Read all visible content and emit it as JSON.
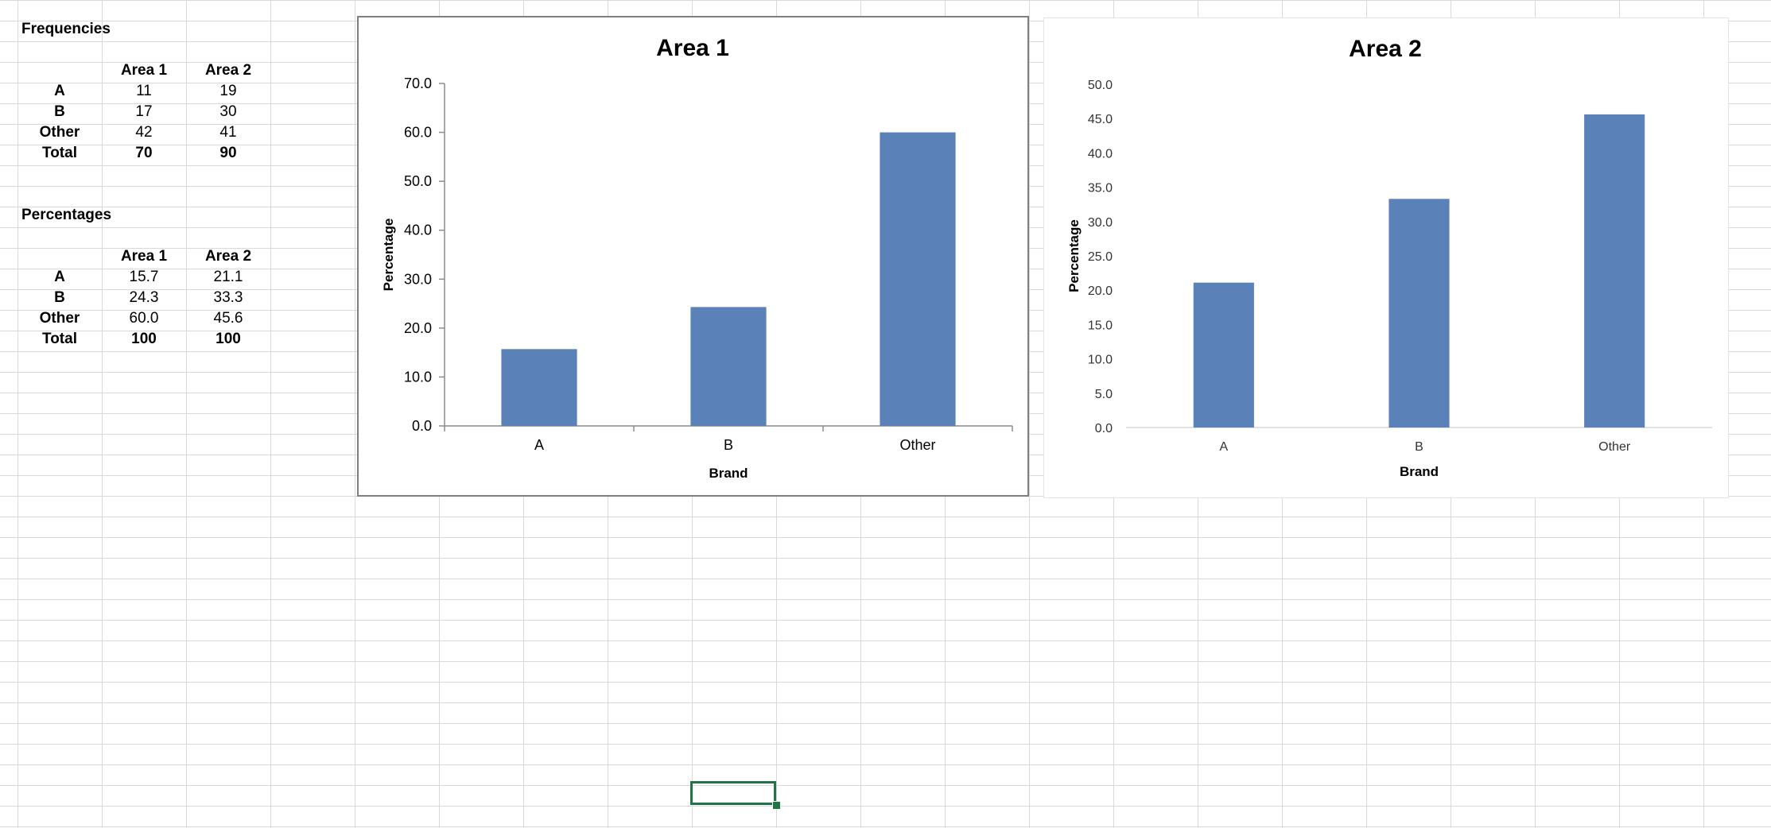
{
  "sheet": {
    "frequencies": {
      "title": "Frequencies",
      "headers": [
        "Area 1",
        "Area 2"
      ],
      "rows": [
        {
          "label": "A",
          "area1": "11",
          "area2": "19"
        },
        {
          "label": "B",
          "area1": "17",
          "area2": "30"
        },
        {
          "label": "Other",
          "area1": "42",
          "area2": "41"
        },
        {
          "label": "Total",
          "area1": "70",
          "area2": "90"
        }
      ]
    },
    "percentages": {
      "title": "Percentages",
      "headers": [
        "Area 1",
        "Area 2"
      ],
      "rows": [
        {
          "label": "A",
          "area1": "15.7",
          "area2": "21.1"
        },
        {
          "label": "B",
          "area1": "24.3",
          "area2": "33.3"
        },
        {
          "label": "Other",
          "area1": "60.0",
          "area2": "45.6"
        },
        {
          "label": "Total",
          "area1": "100",
          "area2": "100"
        }
      ]
    }
  },
  "colors": {
    "bar": "#5a81b8",
    "gridline": "#d9d9d9",
    "selection": "#217346"
  },
  "chart_data": [
    {
      "type": "bar",
      "title": "Area 1",
      "categories": [
        "A",
        "B",
        "Other"
      ],
      "values": [
        15.7,
        24.3,
        60.0
      ],
      "xlabel": "Brand",
      "ylabel": "Percentage",
      "ylim": [
        0,
        70
      ],
      "ytick_step": 10,
      "yticks": [
        "0.0",
        "10.0",
        "20.0",
        "30.0",
        "40.0",
        "50.0",
        "60.0",
        "70.0"
      ],
      "grid": false,
      "legend": "none"
    },
    {
      "type": "bar",
      "title": "Area 2",
      "categories": [
        "A",
        "B",
        "Other"
      ],
      "values": [
        21.1,
        33.3,
        45.6
      ],
      "xlabel": "Brand",
      "ylabel": "Percentage",
      "ylim": [
        0,
        50
      ],
      "ytick_step": 5,
      "yticks": [
        "0.0",
        "5.0",
        "10.0",
        "15.0",
        "20.0",
        "25.0",
        "30.0",
        "35.0",
        "40.0",
        "45.0",
        "50.0"
      ],
      "grid": false,
      "legend": "none"
    }
  ]
}
